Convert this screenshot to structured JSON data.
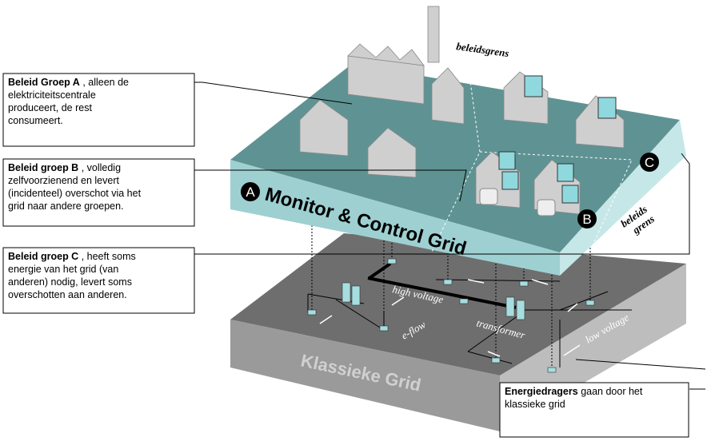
{
  "callouts": [
    {
      "bold": "Beleid Groep A",
      "lines": [
        " , alleen de",
        "elektriciteitscentrale",
        "produceert, de rest",
        "consumeert."
      ]
    },
    {
      "bold": "Beleid groep B",
      "lines": [
        " , volledig",
        "zelfvoorzienend en levert",
        "(incidenteel) overschot via het",
        "grid naar andere groepen."
      ]
    },
    {
      "bold": "Beleid groep  C",
      "lines": [
        " , heeft soms",
        "energie van het grid (van",
        "anderen) nodig, levert soms",
        "overschotten aan anderen."
      ]
    },
    {
      "bold": "Energiedragers",
      "lines": [
        " gaan door het",
        "klassieke grid"
      ]
    }
  ],
  "layers": {
    "top": "Monitor & Control Grid",
    "bottom": "Klassieke Grid"
  },
  "markers": [
    "A",
    "B",
    "C"
  ],
  "labels": {
    "border1": "beleidsgrens",
    "border2": [
      "beleids",
      "grens"
    ],
    "high_voltage": "high voltage",
    "transformer": "transformer",
    "eflow": "e-flow",
    "low_voltage": "low voltage"
  }
}
